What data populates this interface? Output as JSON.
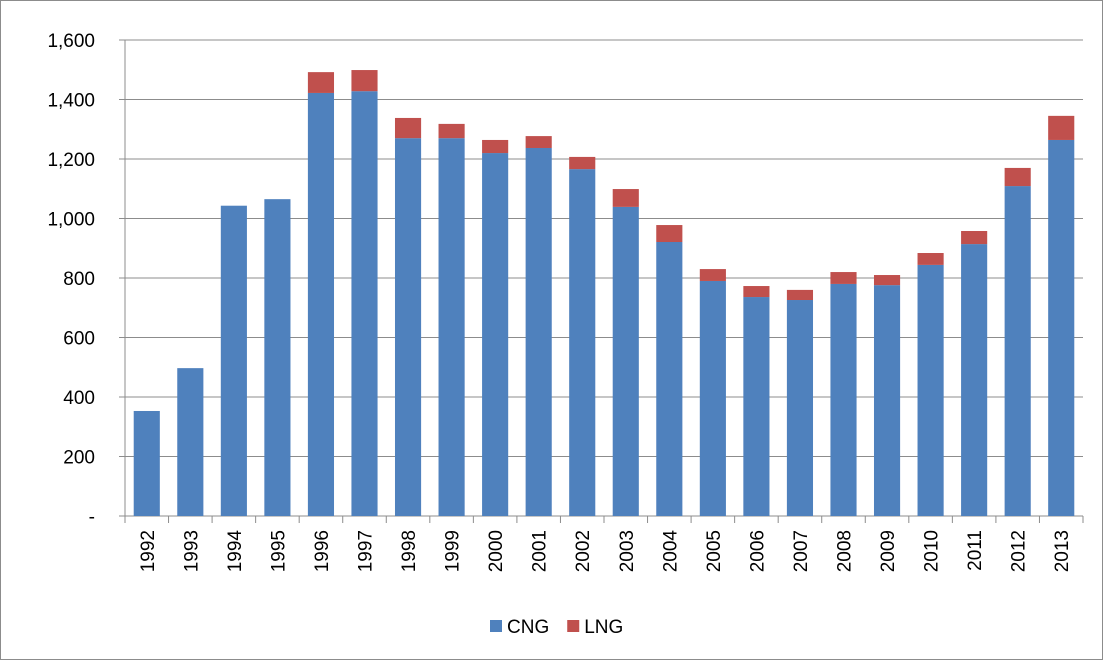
{
  "chart_data": {
    "type": "stacked_bar",
    "categories": [
      "1992",
      "1993",
      "1994",
      "1995",
      "1996",
      "1997",
      "1998",
      "1999",
      "2000",
      "2001",
      "2002",
      "2003",
      "2004",
      "2005",
      "2006",
      "2007",
      "2008",
      "2009",
      "2010",
      "2011",
      "2012",
      "2013"
    ],
    "series": [
      {
        "name": "CNG",
        "color": "#4f81bd",
        "values": [
          353,
          497,
          1043,
          1065,
          1422,
          1428,
          1270,
          1270,
          1220,
          1237,
          1166,
          1039,
          921,
          790,
          736,
          726,
          780,
          776,
          844,
          914,
          1109,
          1264
        ]
      },
      {
        "name": "LNG",
        "color": "#c0504d",
        "values": [
          0,
          0,
          0,
          0,
          70,
          71,
          68,
          48,
          44,
          40,
          41,
          60,
          57,
          40,
          37,
          34,
          40,
          34,
          40,
          44,
          61,
          81
        ]
      }
    ],
    "ylim": [
      0,
      1600
    ],
    "yticks": [
      {
        "value": 0,
        "label": "-"
      },
      200,
      400,
      600,
      800,
      {
        "value": 1000,
        "label": "1,000"
      },
      {
        "value": 1200,
        "label": "1,200"
      },
      {
        "value": 1400,
        "label": "1,400"
      },
      {
        "value": 1600,
        "label": "1,600"
      }
    ],
    "grid": true,
    "legend": "bottom"
  }
}
